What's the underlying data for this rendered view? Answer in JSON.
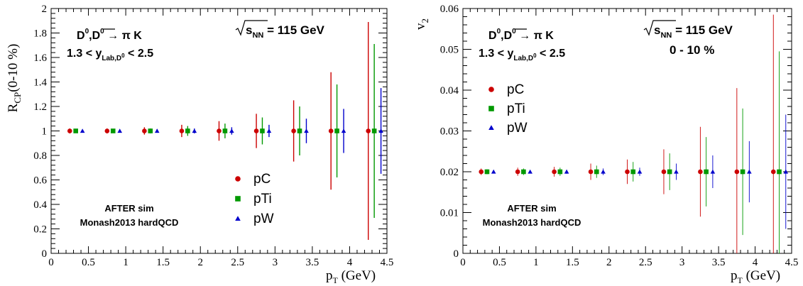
{
  "chart_data": [
    {
      "type": "scatter",
      "xlabel": "p_T (GeV)",
      "ylabel": "R_CP(0-10 %)",
      "xlim": [
        0,
        4.5
      ],
      "ylim": [
        0,
        2
      ],
      "x_ticks": [
        "0",
        "0.5",
        "1",
        "1.5",
        "2",
        "2.5",
        "3",
        "3.5",
        "4",
        "4.5"
      ],
      "y_ticks": [
        "0",
        "0.2",
        "0.4",
        "0.6",
        "0.8",
        "1",
        "1.2",
        "1.4",
        "1.6",
        "1.8",
        "2"
      ],
      "annotations": {
        "process": "D0,D0bar → π K",
        "rapidity": "1.3 < y_Lab,D0 < 2.5",
        "energy": "√s_NN = 115 GeV",
        "sim": "AFTER sim",
        "tune": "Monash2013 hardQCD"
      },
      "legend_position": "bottom-center",
      "series": [
        {
          "name": "pC",
          "color": "#cc0000",
          "marker": "circle",
          "x": [
            0.25,
            0.75,
            1.25,
            1.75,
            2.25,
            2.75,
            3.25,
            3.75,
            4.25
          ],
          "y": [
            1,
            1,
            1,
            1,
            1,
            1,
            1,
            1,
            1
          ],
          "err": [
            0.02,
            0.02,
            0.03,
            0.05,
            0.08,
            0.14,
            0.25,
            0.48,
            0.89
          ]
        },
        {
          "name": "pTi",
          "color": "#009900",
          "marker": "square",
          "x": [
            0.33,
            0.83,
            1.33,
            1.83,
            2.33,
            2.83,
            3.33,
            3.83,
            4.33
          ],
          "y": [
            1,
            1,
            1,
            1,
            1,
            1,
            1,
            1,
            1
          ],
          "err": [
            0.015,
            0.015,
            0.02,
            0.04,
            0.06,
            0.11,
            0.2,
            0.38,
            0.71
          ]
        },
        {
          "name": "pW",
          "color": "#0000cc",
          "marker": "triangle",
          "x": [
            0.42,
            0.92,
            1.42,
            1.92,
            2.42,
            2.92,
            3.42,
            3.92,
            4.42
          ],
          "y": [
            1,
            1,
            1,
            1,
            1,
            1,
            1,
            1,
            1
          ],
          "err": [
            0.01,
            0.01,
            0.015,
            0.02,
            0.03,
            0.05,
            0.1,
            0.18,
            0.35
          ]
        }
      ]
    },
    {
      "type": "scatter",
      "xlabel": "p_T (GeV)",
      "ylabel": "v_2",
      "xlim": [
        0,
        4.5
      ],
      "ylim": [
        0,
        0.06
      ],
      "x_ticks": [
        "0",
        "0.5",
        "1",
        "1.5",
        "2",
        "2.5",
        "3",
        "3.5",
        "4",
        "4.5"
      ],
      "y_ticks": [
        "0",
        "0.01",
        "0.02",
        "0.03",
        "0.04",
        "0.05",
        "0.06"
      ],
      "annotations": {
        "process": "D0,D0bar → π K",
        "rapidity": "1.3 < y_Lab,D0 < 2.5",
        "energy": "√s_NN = 115 GeV",
        "centrality": "0 - 10 %",
        "sim": "AFTER sim",
        "tune": "Monash2013 hardQCD"
      },
      "legend_position": "top-left",
      "series": [
        {
          "name": "pC",
          "color": "#cc0000",
          "marker": "circle",
          "x": [
            0.25,
            0.75,
            1.25,
            1.75,
            2.25,
            2.75,
            3.25,
            3.75,
            4.25
          ],
          "y": [
            0.02,
            0.02,
            0.02,
            0.02,
            0.02,
            0.02,
            0.02,
            0.02,
            0.02
          ],
          "err": [
            0.0008,
            0.001,
            0.0012,
            0.002,
            0.003,
            0.0055,
            0.011,
            0.0205,
            0.0385
          ]
        },
        {
          "name": "pTi",
          "color": "#009900",
          "marker": "square",
          "x": [
            0.33,
            0.83,
            1.33,
            1.83,
            2.33,
            2.83,
            3.33,
            3.83,
            4.33
          ],
          "y": [
            0.02,
            0.02,
            0.02,
            0.02,
            0.02,
            0.02,
            0.02,
            0.02,
            0.02
          ],
          "err": [
            0.0006,
            0.0008,
            0.001,
            0.0015,
            0.0024,
            0.0045,
            0.0085,
            0.0155,
            0.0295
          ]
        },
        {
          "name": "pW",
          "color": "#0000cc",
          "marker": "triangle",
          "x": [
            0.42,
            0.92,
            1.42,
            1.92,
            2.42,
            2.92,
            3.42,
            3.92,
            4.42
          ],
          "y": [
            0.02,
            0.02,
            0.02,
            0.02,
            0.02,
            0.02,
            0.02,
            0.02,
            0.02
          ],
          "err": [
            0.0003,
            0.0004,
            0.0005,
            0.0008,
            0.001,
            0.002,
            0.004,
            0.0075,
            0.014
          ]
        }
      ]
    }
  ]
}
